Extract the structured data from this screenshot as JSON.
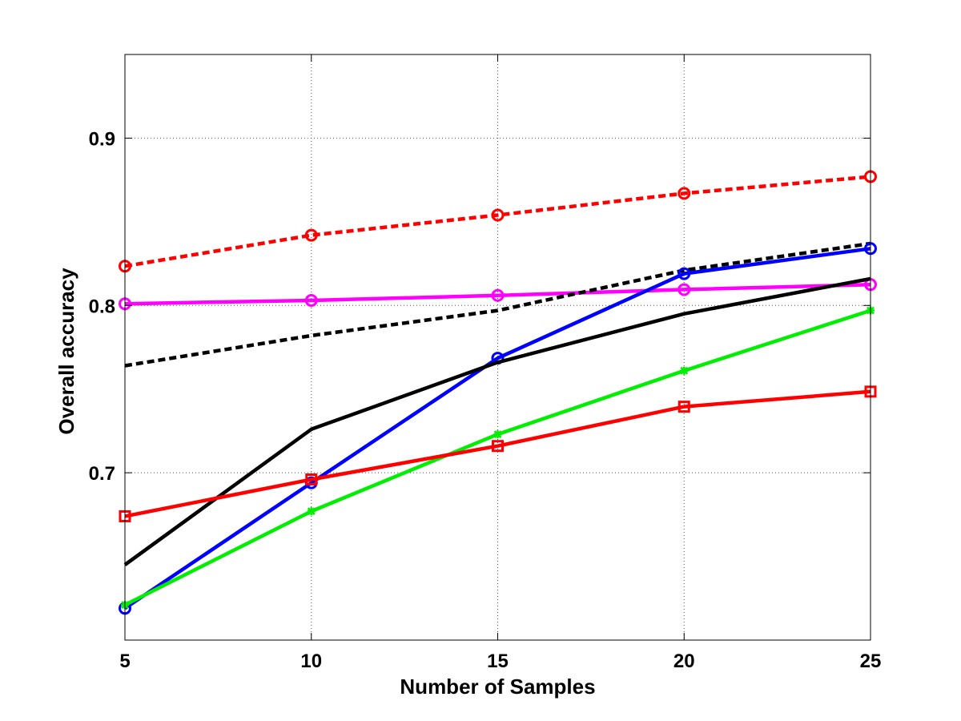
{
  "chart_data": {
    "type": "line",
    "title": "",
    "xlabel": "Number of Samples",
    "ylabel": "Overall accuracy",
    "xlim": [
      5,
      25
    ],
    "ylim": [
      0.6,
      0.95
    ],
    "xticks": [
      5,
      10,
      15,
      20,
      25
    ],
    "yticks": [
      0.7,
      0.8,
      0.9
    ],
    "xtick_labels": [
      "5",
      "10",
      "15",
      "20",
      "25"
    ],
    "ytick_labels": [
      "0.7",
      "0.8",
      "0.9"
    ],
    "grid": true,
    "legend": "none",
    "x": [
      5,
      10,
      15,
      20,
      25
    ],
    "series": [
      {
        "values": [
          0.8235,
          0.842,
          0.854,
          0.867,
          0.877
        ],
        "color": "#ff0000",
        "dash": "dashed",
        "marker": "circle"
      },
      {
        "values": [
          0.801,
          0.803,
          0.806,
          0.8095,
          0.8125
        ],
        "color": "#ff00ff",
        "dash": "solid",
        "marker": "circle"
      },
      {
        "values": [
          0.764,
          0.782,
          0.797,
          0.821,
          0.837
        ],
        "color": "#000000",
        "dash": "dashed",
        "marker": "none"
      },
      {
        "values": [
          0.619,
          0.694,
          0.7685,
          0.819,
          0.834
        ],
        "color": "#0000ff",
        "dash": "solid",
        "marker": "circle"
      },
      {
        "values": [
          0.645,
          0.726,
          0.766,
          0.795,
          0.816
        ],
        "color": "#000000",
        "dash": "solid",
        "marker": "none"
      },
      {
        "values": [
          0.621,
          0.677,
          0.723,
          0.761,
          0.797
        ],
        "color": "#00ee00",
        "dash": "solid",
        "marker": "star"
      },
      {
        "values": [
          0.674,
          0.696,
          0.716,
          0.7395,
          0.7485
        ],
        "color": "#ff0000",
        "dash": "solid",
        "marker": "square"
      }
    ]
  }
}
